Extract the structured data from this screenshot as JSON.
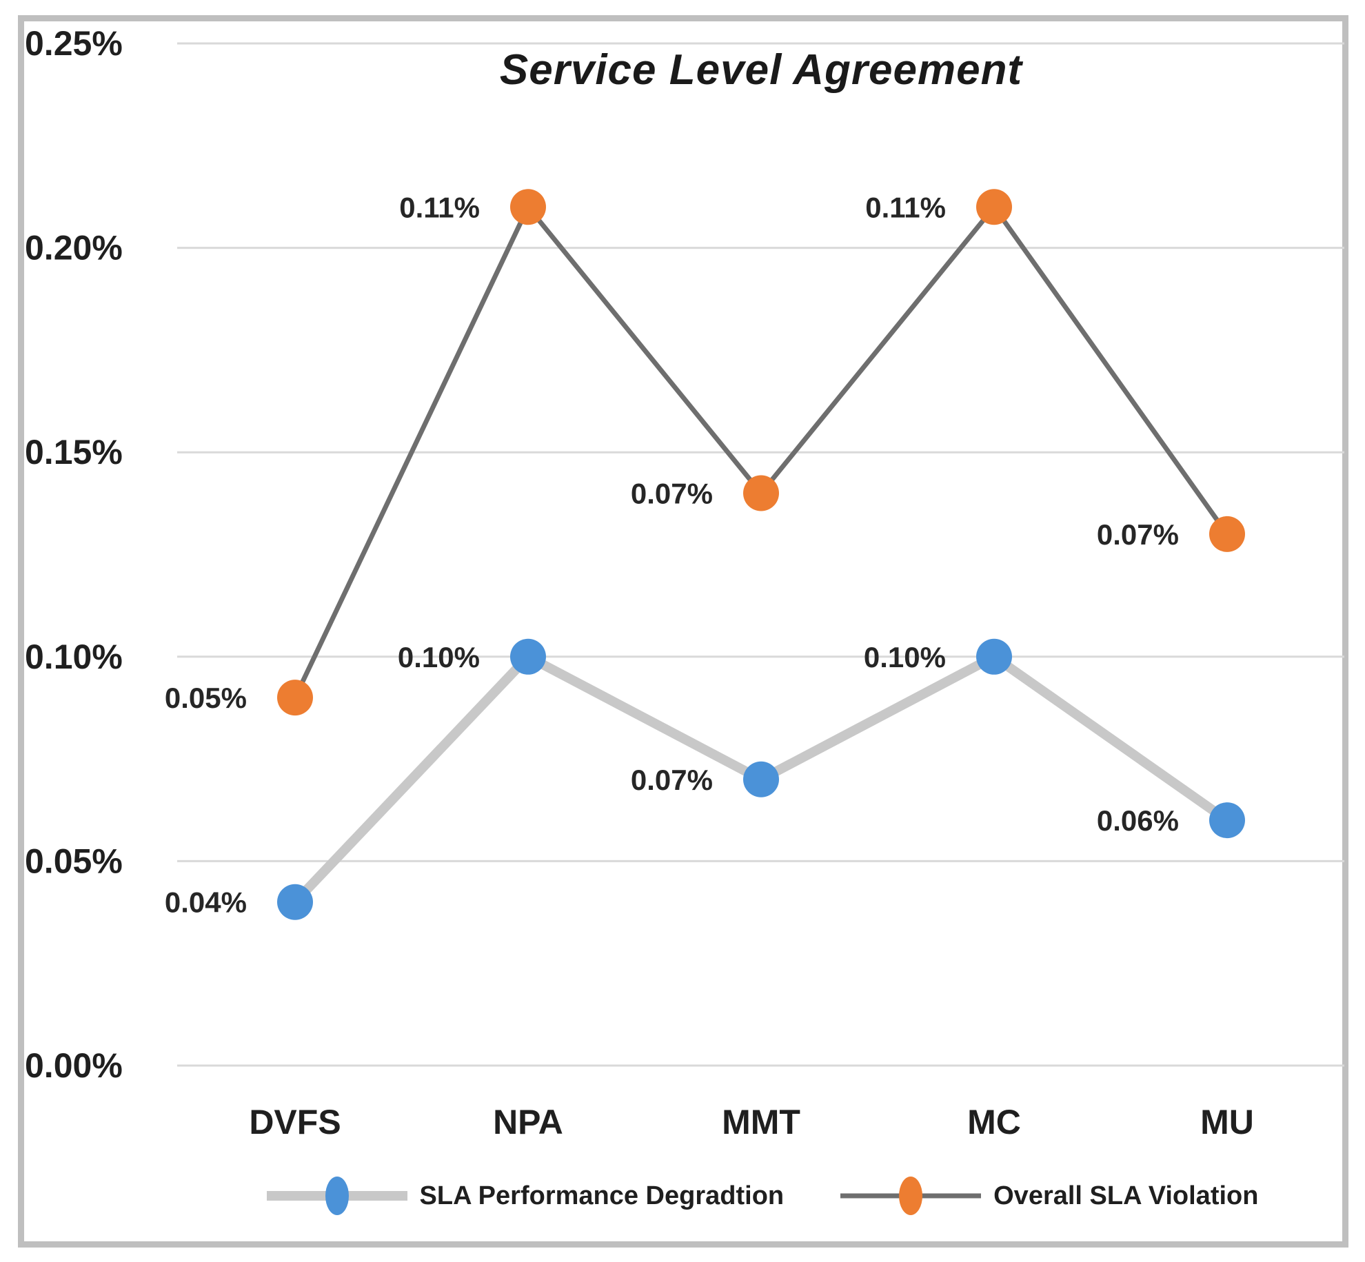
{
  "figure": {
    "background": "#ffffff",
    "border_color": "#bfbfbf",
    "text_color": "#1f1f1f"
  },
  "chart_data": {
    "type": "line",
    "title": "Service Level Agreement",
    "categories": [
      "DVFS",
      "NPA",
      "MMT",
      "MC",
      "MU"
    ],
    "series": [
      {
        "name": "SLA Performance Degradtion",
        "values": [
          0.04,
          0.1,
          0.07,
          0.1,
          0.06
        ],
        "data_labels": [
          "0.04%",
          "0.10%",
          "0.07%",
          "0.10%",
          "0.06%"
        ],
        "marker_color": "#4b92d8",
        "line_color": "#c8c8c8",
        "line_width": 14
      },
      {
        "name": "Overall SLA Violation",
        "values": [
          0.05,
          0.11,
          0.07,
          0.11,
          0.07
        ],
        "data_labels": [
          "0.05%",
          "0.11%",
          "0.07%",
          "0.11%",
          "0.07%"
        ],
        "marker_color": "#ed7d31",
        "line_color": "#6e6e6e",
        "line_width": 7
      }
    ],
    "stacked": true,
    "y_axis": {
      "ticks": [
        "0.25%",
        "0.20%",
        "0.15%",
        "0.10%",
        "0.05%",
        "0.00%"
      ],
      "min": 0,
      "max": 0.25,
      "step": 0.05
    },
    "grid": {
      "horizontal": true,
      "vertical": false,
      "color": "#d9d9d9"
    },
    "legend": {
      "position": "bottom"
    }
  }
}
